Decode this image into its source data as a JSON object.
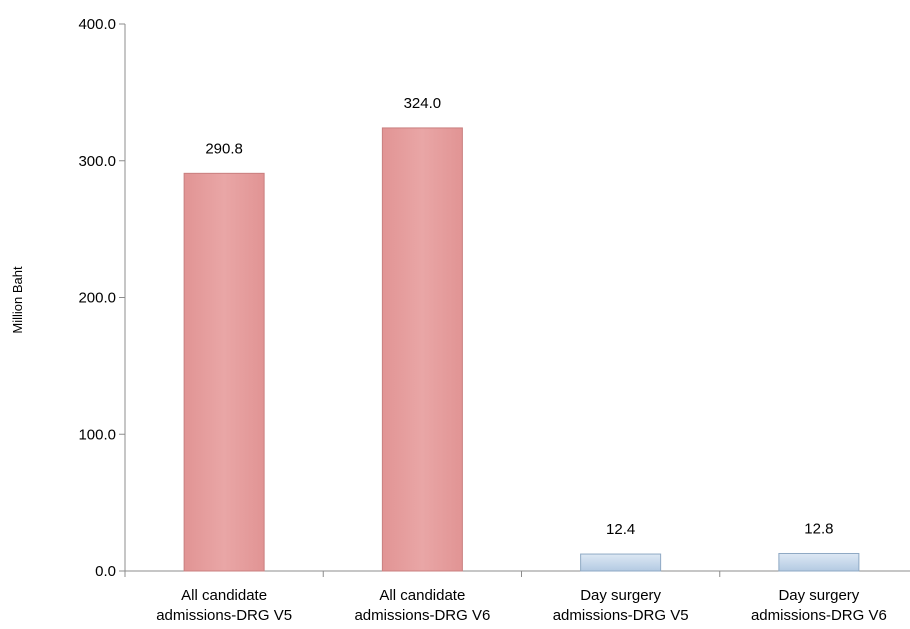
{
  "chart_data": {
    "type": "bar",
    "title": "",
    "xlabel": "",
    "ylabel": "Million Baht",
    "ylim": [
      0,
      400
    ],
    "yticks": [
      "0.0",
      "100.0",
      "200.0",
      "300.0",
      "400.0"
    ],
    "ytick_values": [
      0,
      100,
      200,
      300,
      400
    ],
    "categories": [
      [
        "All candidate",
        "admissions-DRG V5"
      ],
      [
        "All candidate",
        "admissions-DRG V6"
      ],
      [
        "Day surgery",
        "admissions-DRG V5"
      ],
      [
        "Day surgery",
        "admissions-DRG V6"
      ]
    ],
    "values": [
      290.8,
      324.0,
      12.4,
      12.8
    ],
    "value_labels": [
      "290.8",
      "324.0",
      "12.4",
      "12.8"
    ],
    "bar_colors": [
      "#e6a0a0",
      "#e6a0a0",
      "#c6d9ec",
      "#c6d9ec"
    ],
    "bar_edge_colors": [
      "#c97f7f",
      "#c97f7f",
      "#8fa9c4",
      "#8fa9c4"
    ],
    "grid": false,
    "legend": "none"
  }
}
